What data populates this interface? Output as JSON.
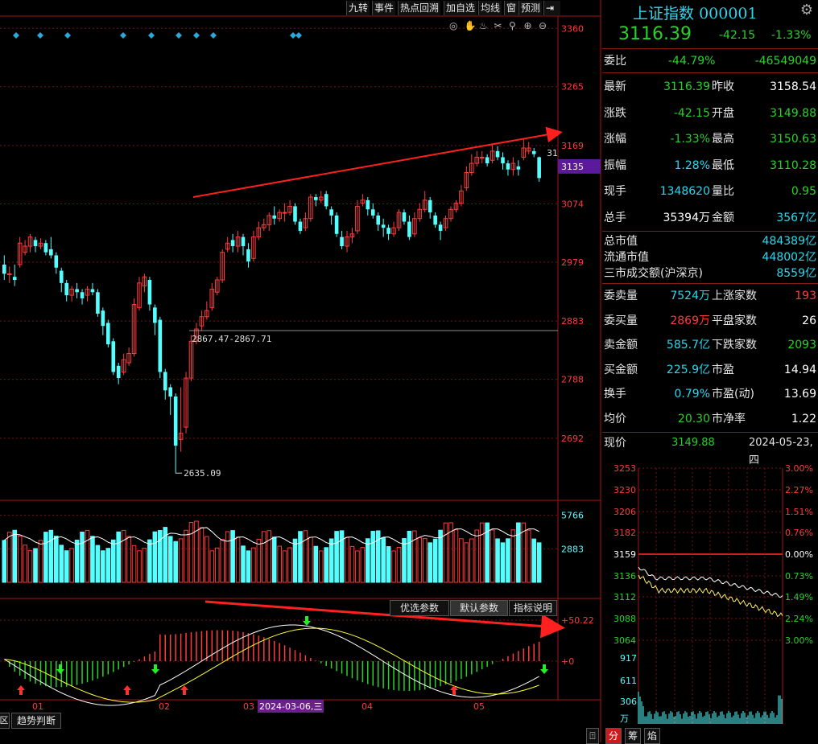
{
  "toolbar": {
    "items": [
      "九转",
      "事件",
      "热点回溯",
      "加自选",
      "均线",
      "窗",
      "预测"
    ]
  },
  "title": {
    "name": "上证指数",
    "code": "000001",
    "price": "3116.39",
    "change": "-42.15",
    "change_pct": "-1.33%"
  },
  "weibi": {
    "label": "委比",
    "pct": "-44.79%",
    "value": "-46549049"
  },
  "stats": [
    {
      "l": "最新",
      "v": "3116.39",
      "l2": "昨收",
      "v2": "3158.54"
    },
    {
      "l": "涨跌",
      "v": "-42.15",
      "l2": "开盘",
      "v2": "3149.88"
    },
    {
      "l": "涨幅",
      "v": "-1.33%",
      "l2": "最高",
      "v2": "3150.63"
    },
    {
      "l": "振幅",
      "v": "1.28%",
      "l2": "最低",
      "v2": "3110.28"
    },
    {
      "l": "现手",
      "v": "1348620",
      "l2": "量比",
      "v2": "0.95"
    },
    {
      "l": "总手",
      "v": "35394万",
      "l2": "金额",
      "v2": "3567亿"
    }
  ],
  "market": [
    {
      "l": "总市值",
      "v": "484389亿"
    },
    {
      "l": "流通市值",
      "v": "448002亿"
    },
    {
      "l": "三市成交额(沪深京)",
      "v": "8559亿"
    }
  ],
  "orders": [
    {
      "l": "委卖量",
      "v": "7524万",
      "l2": "上涨家数",
      "v2": "193"
    },
    {
      "l": "委买量",
      "v": "2869万",
      "l2": "平盘家数",
      "v2": "26"
    },
    {
      "l": "卖金额",
      "v": "585.7亿",
      "l2": "下跌家数",
      "v2": "2093"
    },
    {
      "l": "买金额",
      "v": "225.9亿",
      "l2": "市盈",
      "v2": "14.94"
    },
    {
      "l": "换手",
      "v": "0.79%",
      "l2": "市盈(动)",
      "v2": "13.69"
    },
    {
      "l": "均价",
      "v": "20.30",
      "l2": "市净率",
      "v2": "1.22"
    }
  ],
  "xianjia": {
    "label": "现价",
    "value": "3149.88",
    "date": "2024-05-23,四"
  },
  "bottom_tabs": [
    "分",
    "筹",
    "焰"
  ],
  "left_tabs": [
    "趋势判断"
  ],
  "indicator_tabs": [
    "优选参数",
    "默认参数",
    "指标说明"
  ],
  "main_axis": [
    "3360",
    "3265",
    "3169",
    "3135",
    "3074",
    "2979",
    "2883",
    "2788",
    "2692"
  ],
  "vol_axis": [
    "5766",
    "2883"
  ],
  "ind_axis": [
    "50.22",
    "0"
  ],
  "x_labels": [
    "01",
    "02",
    "03",
    "2024-03-06,三",
    "04",
    "05"
  ],
  "annotations": {
    "low": "2635.09",
    "level": "2867.47-2867.71",
    "last_high_partial": "31"
  },
  "intraday_left_axis": [
    "3253",
    "3230",
    "3206",
    "3182",
    "3159",
    "3136",
    "3112",
    "3088",
    "3064",
    "917",
    "611",
    "306",
    "万"
  ],
  "intraday_right_axis": [
    "3.00%",
    "2.27%",
    "1.51%",
    "0.76%",
    "0.00%",
    "0.73%",
    "1.49%",
    "2.24%",
    "3.00%"
  ],
  "chart_data": {
    "type": "candlestick",
    "title": "上证指数 000001",
    "ylim": [
      2600,
      3380
    ],
    "labeled_low": 2635.09,
    "labeled_level": 2867.47,
    "candles": [
      [
        2975,
        2960,
        2990,
        2950
      ],
      [
        2960,
        2960,
        2972,
        2945
      ],
      [
        2955,
        2950,
        2975,
        2940
      ],
      [
        2975,
        3010,
        3020,
        2970
      ],
      [
        2995,
        3005,
        3015,
        2990
      ],
      [
        3005,
        3020,
        3025,
        2995
      ],
      [
        3015,
        3005,
        3020,
        2995
      ],
      [
        3005,
        3010,
        3018,
        3000
      ],
      [
        3010,
        2995,
        3015,
        2990
      ],
      [
        3000,
        2990,
        3020,
        2985
      ],
      [
        2990,
        2970,
        2995,
        2960
      ],
      [
        2965,
        2945,
        2970,
        2930
      ],
      [
        2945,
        2925,
        2950,
        2915
      ],
      [
        2925,
        2935,
        2940,
        2915
      ],
      [
        2935,
        2930,
        2945,
        2920
      ],
      [
        2930,
        2920,
        2935,
        2910
      ],
      [
        2925,
        2935,
        2940,
        2915
      ],
      [
        2935,
        2930,
        2945,
        2925
      ],
      [
        2930,
        2895,
        2935,
        2890
      ],
      [
        2900,
        2875,
        2905,
        2860
      ],
      [
        2880,
        2845,
        2885,
        2840
      ],
      [
        2850,
        2800,
        2855,
        2795
      ],
      [
        2810,
        2790,
        2815,
        2780
      ],
      [
        2800,
        2820,
        2830,
        2795
      ],
      [
        2815,
        2830,
        2840,
        2810
      ],
      [
        2830,
        2910,
        2920,
        2825
      ],
      [
        2905,
        2945,
        2955,
        2900
      ],
      [
        2940,
        2955,
        2960,
        2930
      ],
      [
        2950,
        2910,
        2955,
        2900
      ],
      [
        2905,
        2880,
        2910,
        2860
      ],
      [
        2885,
        2800,
        2890,
        2790
      ],
      [
        2800,
        2770,
        2805,
        2755
      ],
      [
        2775,
        2760,
        2780,
        2730
      ],
      [
        2760,
        2680,
        2765,
        2635
      ],
      [
        2690,
        2700,
        2775,
        2670
      ],
      [
        2710,
        2790,
        2800,
        2700
      ],
      [
        2790,
        2850,
        2860,
        2785
      ],
      [
        2850,
        2870,
        2880,
        2845
      ],
      [
        2875,
        2890,
        2900,
        2868
      ],
      [
        2890,
        2900,
        2915,
        2885
      ],
      [
        2905,
        2935,
        2945,
        2900
      ],
      [
        2930,
        2950,
        2955,
        2925
      ],
      [
        2950,
        2995,
        3000,
        2945
      ],
      [
        3000,
        3010,
        3020,
        2995
      ],
      [
        3015,
        3005,
        3025,
        2995
      ],
      [
        3005,
        3020,
        3030,
        2995
      ],
      [
        3020,
        3005,
        3025,
        2990
      ],
      [
        3000,
        2980,
        3010,
        2970
      ],
      [
        2985,
        3020,
        3030,
        2980
      ],
      [
        3020,
        3035,
        3045,
        3015
      ],
      [
        3035,
        3040,
        3050,
        3030
      ],
      [
        3040,
        3055,
        3060,
        3030
      ],
      [
        3055,
        3050,
        3070,
        3040
      ],
      [
        3050,
        3060,
        3065,
        3045
      ],
      [
        3060,
        3060,
        3075,
        3045
      ],
      [
        3060,
        3070,
        3080,
        3055
      ],
      [
        3070,
        3045,
        3075,
        3040
      ],
      [
        3045,
        3030,
        3050,
        3025
      ],
      [
        3035,
        3050,
        3060,
        3030
      ],
      [
        3050,
        3085,
        3090,
        3045
      ],
      [
        3085,
        3080,
        3090,
        3070
      ],
      [
        3080,
        3085,
        3095,
        3075
      ],
      [
        3090,
        3070,
        3095,
        3065
      ],
      [
        3065,
        3055,
        3070,
        3040
      ],
      [
        3055,
        3025,
        3060,
        3020
      ],
      [
        3020,
        3005,
        3030,
        3000
      ],
      [
        3005,
        3020,
        3030,
        2995
      ],
      [
        3020,
        3025,
        3035,
        3010
      ],
      [
        3030,
        3070,
        3080,
        3025
      ],
      [
        3075,
        3080,
        3090,
        3070
      ],
      [
        3080,
        3065,
        3085,
        3055
      ],
      [
        3065,
        3055,
        3075,
        3050
      ],
      [
        3055,
        3040,
        3060,
        3030
      ],
      [
        3040,
        3035,
        3050,
        3020
      ],
      [
        3035,
        3025,
        3040,
        3015
      ],
      [
        3025,
        3035,
        3045,
        3020
      ],
      [
        3035,
        3060,
        3065,
        3030
      ],
      [
        3060,
        3045,
        3065,
        3040
      ],
      [
        3045,
        3020,
        3055,
        3015
      ],
      [
        3025,
        3050,
        3060,
        3020
      ],
      [
        3050,
        3065,
        3075,
        3045
      ],
      [
        3065,
        3080,
        3095,
        3060
      ],
      [
        3080,
        3060,
        3085,
        3050
      ],
      [
        3055,
        3040,
        3060,
        3035
      ],
      [
        3040,
        3030,
        3045,
        3015
      ],
      [
        3035,
        3050,
        3055,
        3030
      ],
      [
        3050,
        3065,
        3070,
        3045
      ],
      [
        3065,
        3075,
        3080,
        3060
      ],
      [
        3075,
        3095,
        3105,
        3070
      ],
      [
        3100,
        3125,
        3135,
        3095
      ],
      [
        3125,
        3140,
        3155,
        3120
      ],
      [
        3140,
        3150,
        3160,
        3135
      ],
      [
        3150,
        3150,
        3160,
        3140
      ],
      [
        3150,
        3140,
        3155,
        3135
      ],
      [
        3145,
        3160,
        3170,
        3140
      ],
      [
        3160,
        3150,
        3168,
        3145
      ],
      [
        3150,
        3140,
        3158,
        3130
      ],
      [
        3140,
        3130,
        3145,
        3120
      ],
      [
        3130,
        3140,
        3150,
        3120
      ],
      [
        3135,
        3130,
        3145,
        3120
      ],
      [
        3150,
        3165,
        3180,
        3145
      ],
      [
        3160,
        3165,
        3175,
        3155
      ],
      [
        3160,
        3155,
        3165,
        3150
      ],
      [
        3150,
        3116,
        3151,
        3110
      ]
    ]
  }
}
